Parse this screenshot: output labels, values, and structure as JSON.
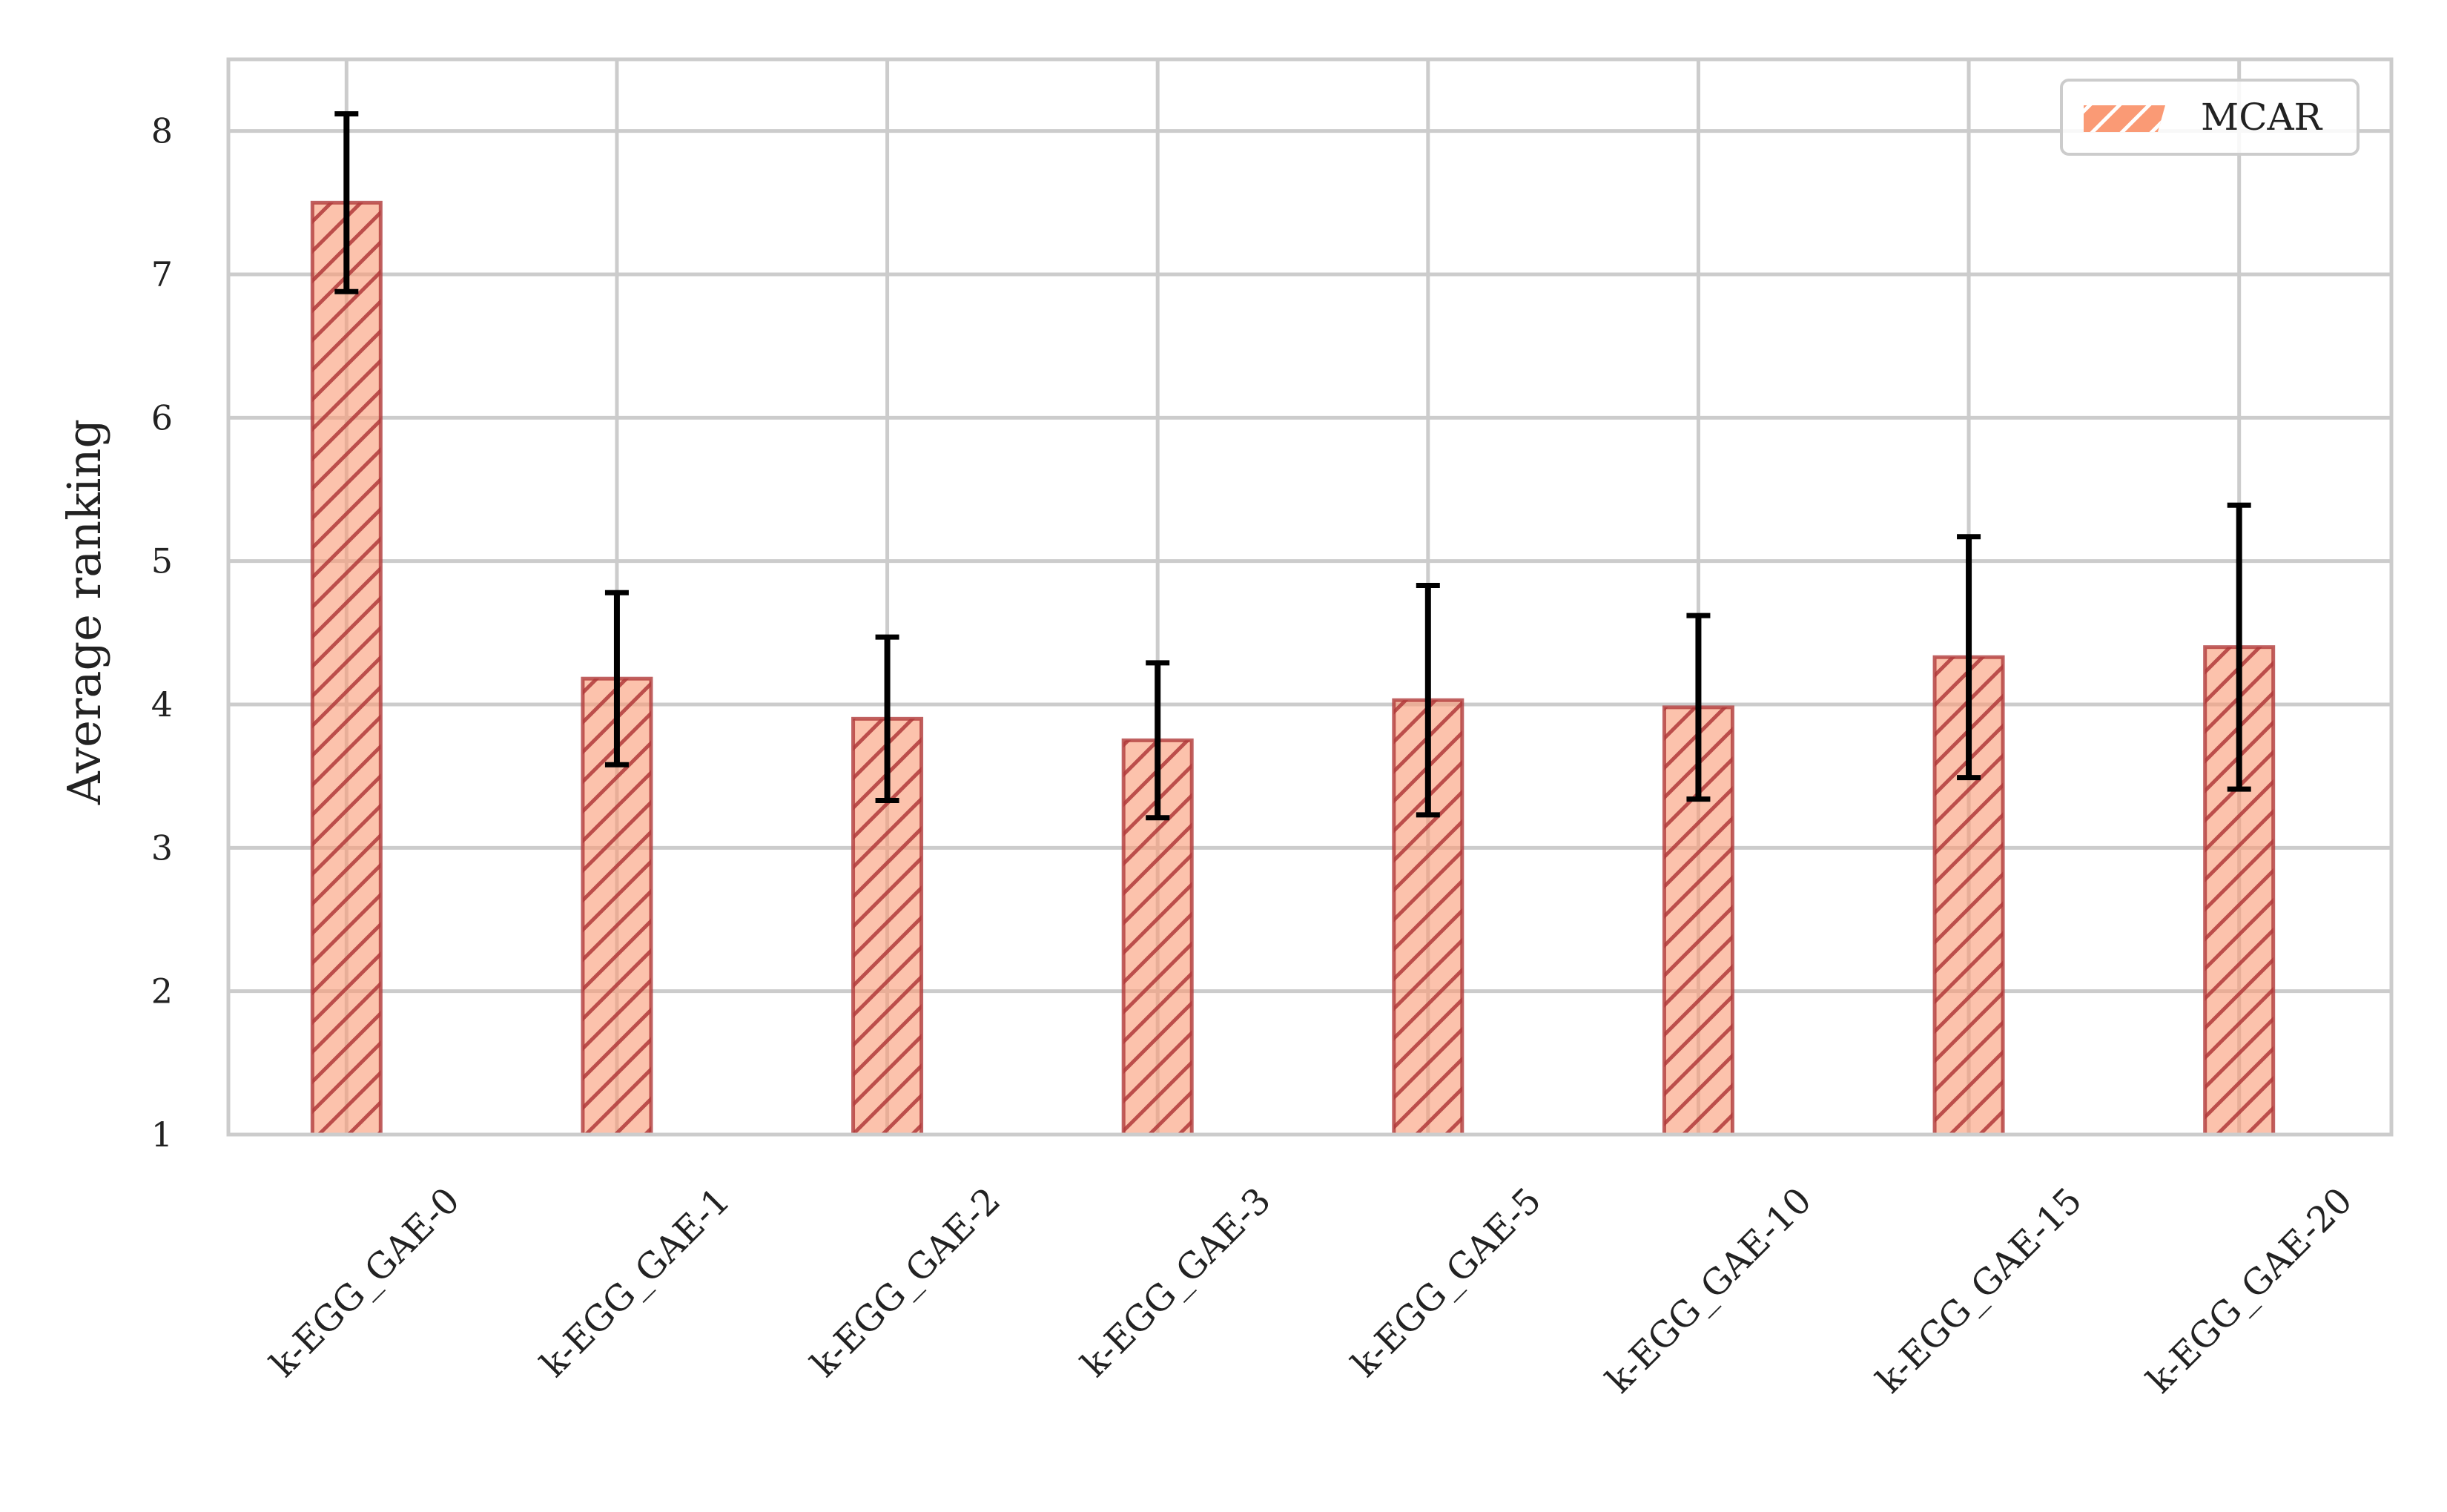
{
  "chart_data": {
    "type": "bar",
    "categories": [
      "k-EGG_GAE-0",
      "k-EGG_GAE-1",
      "k-EGG_GAE-2",
      "k-EGG_GAE-3",
      "k-EGG_GAE-5",
      "k-EGG_GAE-10",
      "k-EGG_GAE-15",
      "k-EGG_GAE-20"
    ],
    "series": [
      {
        "name": "MCAR",
        "values": [
          7.5,
          4.18,
          3.9,
          3.75,
          4.03,
          3.98,
          4.33,
          4.4
        ],
        "error": [
          0.62,
          0.6,
          0.57,
          0.54,
          0.8,
          0.64,
          0.84,
          0.99
        ],
        "color": "#fa9a75",
        "edge_color": "#b03a3a",
        "hatch": "diagonal"
      }
    ],
    "title": "",
    "xlabel": "",
    "ylabel": "Average ranking",
    "ylim": [
      1,
      8.5
    ],
    "yticks": [
      1,
      2,
      3,
      4,
      5,
      6,
      7,
      8
    ],
    "grid": true,
    "legend": "top-right"
  }
}
